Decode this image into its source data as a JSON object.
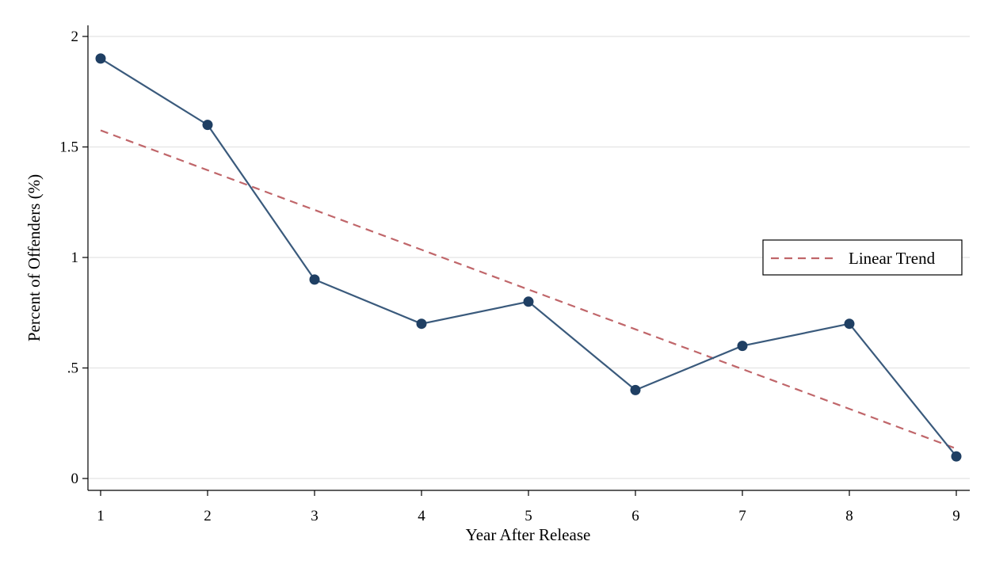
{
  "chart_data": {
    "type": "line",
    "title": "",
    "xlabel": "Year After Release",
    "ylabel": "Percent of Offenders (%)",
    "x": [
      1,
      2,
      3,
      4,
      5,
      6,
      7,
      8,
      9
    ],
    "xlim": [
      1,
      9
    ],
    "ylim": [
      0,
      2
    ],
    "x_ticks": [
      1,
      2,
      3,
      4,
      5,
      6,
      7,
      8,
      9
    ],
    "x_tick_labels": [
      "1",
      "2",
      "3",
      "4",
      "5",
      "6",
      "7",
      "8",
      "9"
    ],
    "y_ticks": [
      0,
      0.5,
      1,
      1.5,
      2
    ],
    "y_tick_labels": [
      "0",
      ".5",
      "1",
      "1.5",
      "2"
    ],
    "grid": true,
    "legend_position": "right",
    "series": [
      {
        "values": [
          1.9,
          1.6,
          0.9,
          0.7,
          0.8,
          0.4,
          0.6,
          0.7,
          0.1
        ],
        "color": "#3a5a7c",
        "marker_color": "#1f3f63",
        "style": "solid-with-markers"
      },
      {
        "name": "Linear Trend",
        "values": [
          1.575,
          1.395,
          1.215,
          1.035,
          0.855,
          0.675,
          0.495,
          0.315,
          0.135
        ],
        "color": "#c0666a",
        "style": "dashed"
      }
    ]
  }
}
